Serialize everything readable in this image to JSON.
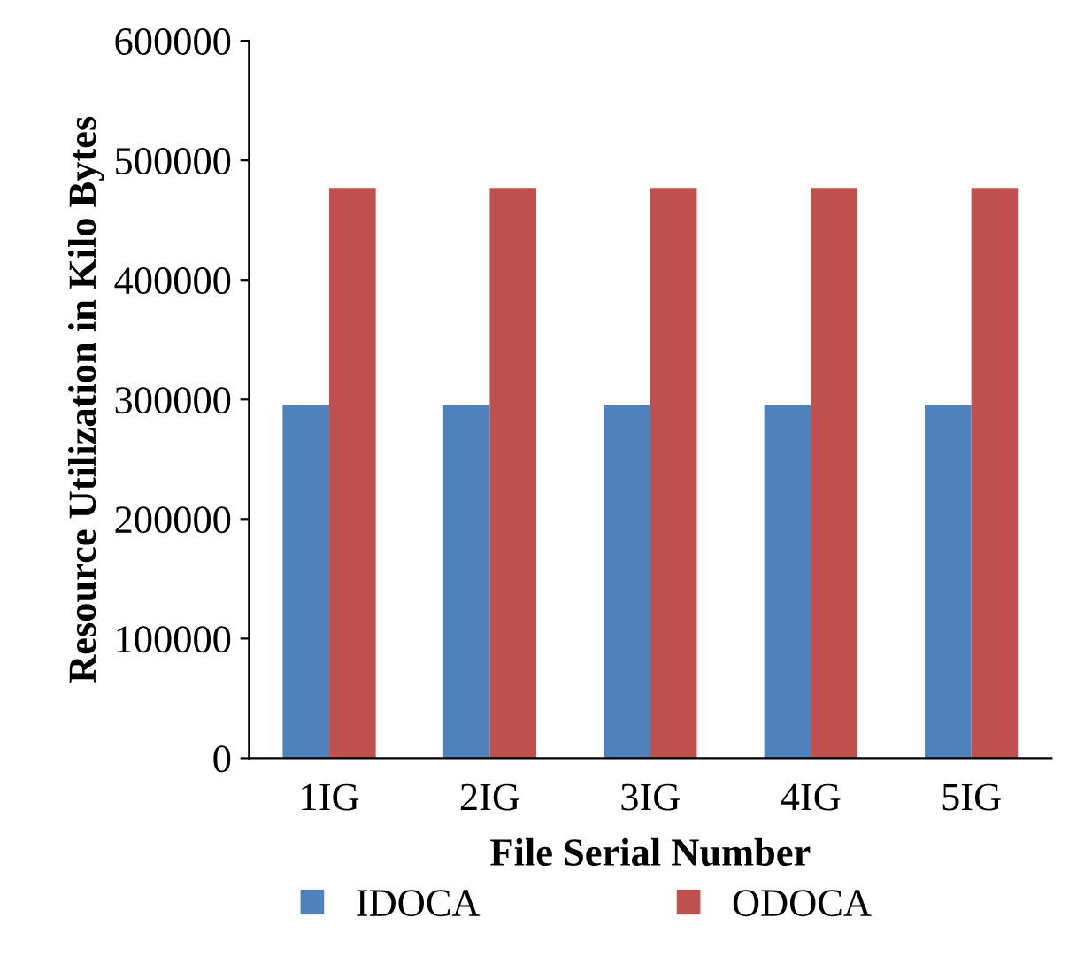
{
  "chart_data": {
    "type": "bar",
    "xlabel": "File Serial Number",
    "ylabel": "Resource Utilization in Kilo Bytes",
    "categories": [
      "1IG",
      "2IG",
      "3IG",
      "4IG",
      "5IG"
    ],
    "series": [
      {
        "name": "IDOCA",
        "color": "#4f81bd",
        "values": [
          295000,
          295000,
          295000,
          295000,
          295000
        ]
      },
      {
        "name": "ODOCA",
        "color": "#c0504d",
        "values": [
          477000,
          477000,
          477000,
          477000,
          477000
        ]
      }
    ],
    "ylim": [
      0,
      600000
    ],
    "yticks": [
      0,
      100000,
      200000,
      300000,
      400000,
      500000,
      600000
    ],
    "grid": false,
    "legend": "bottom"
  }
}
